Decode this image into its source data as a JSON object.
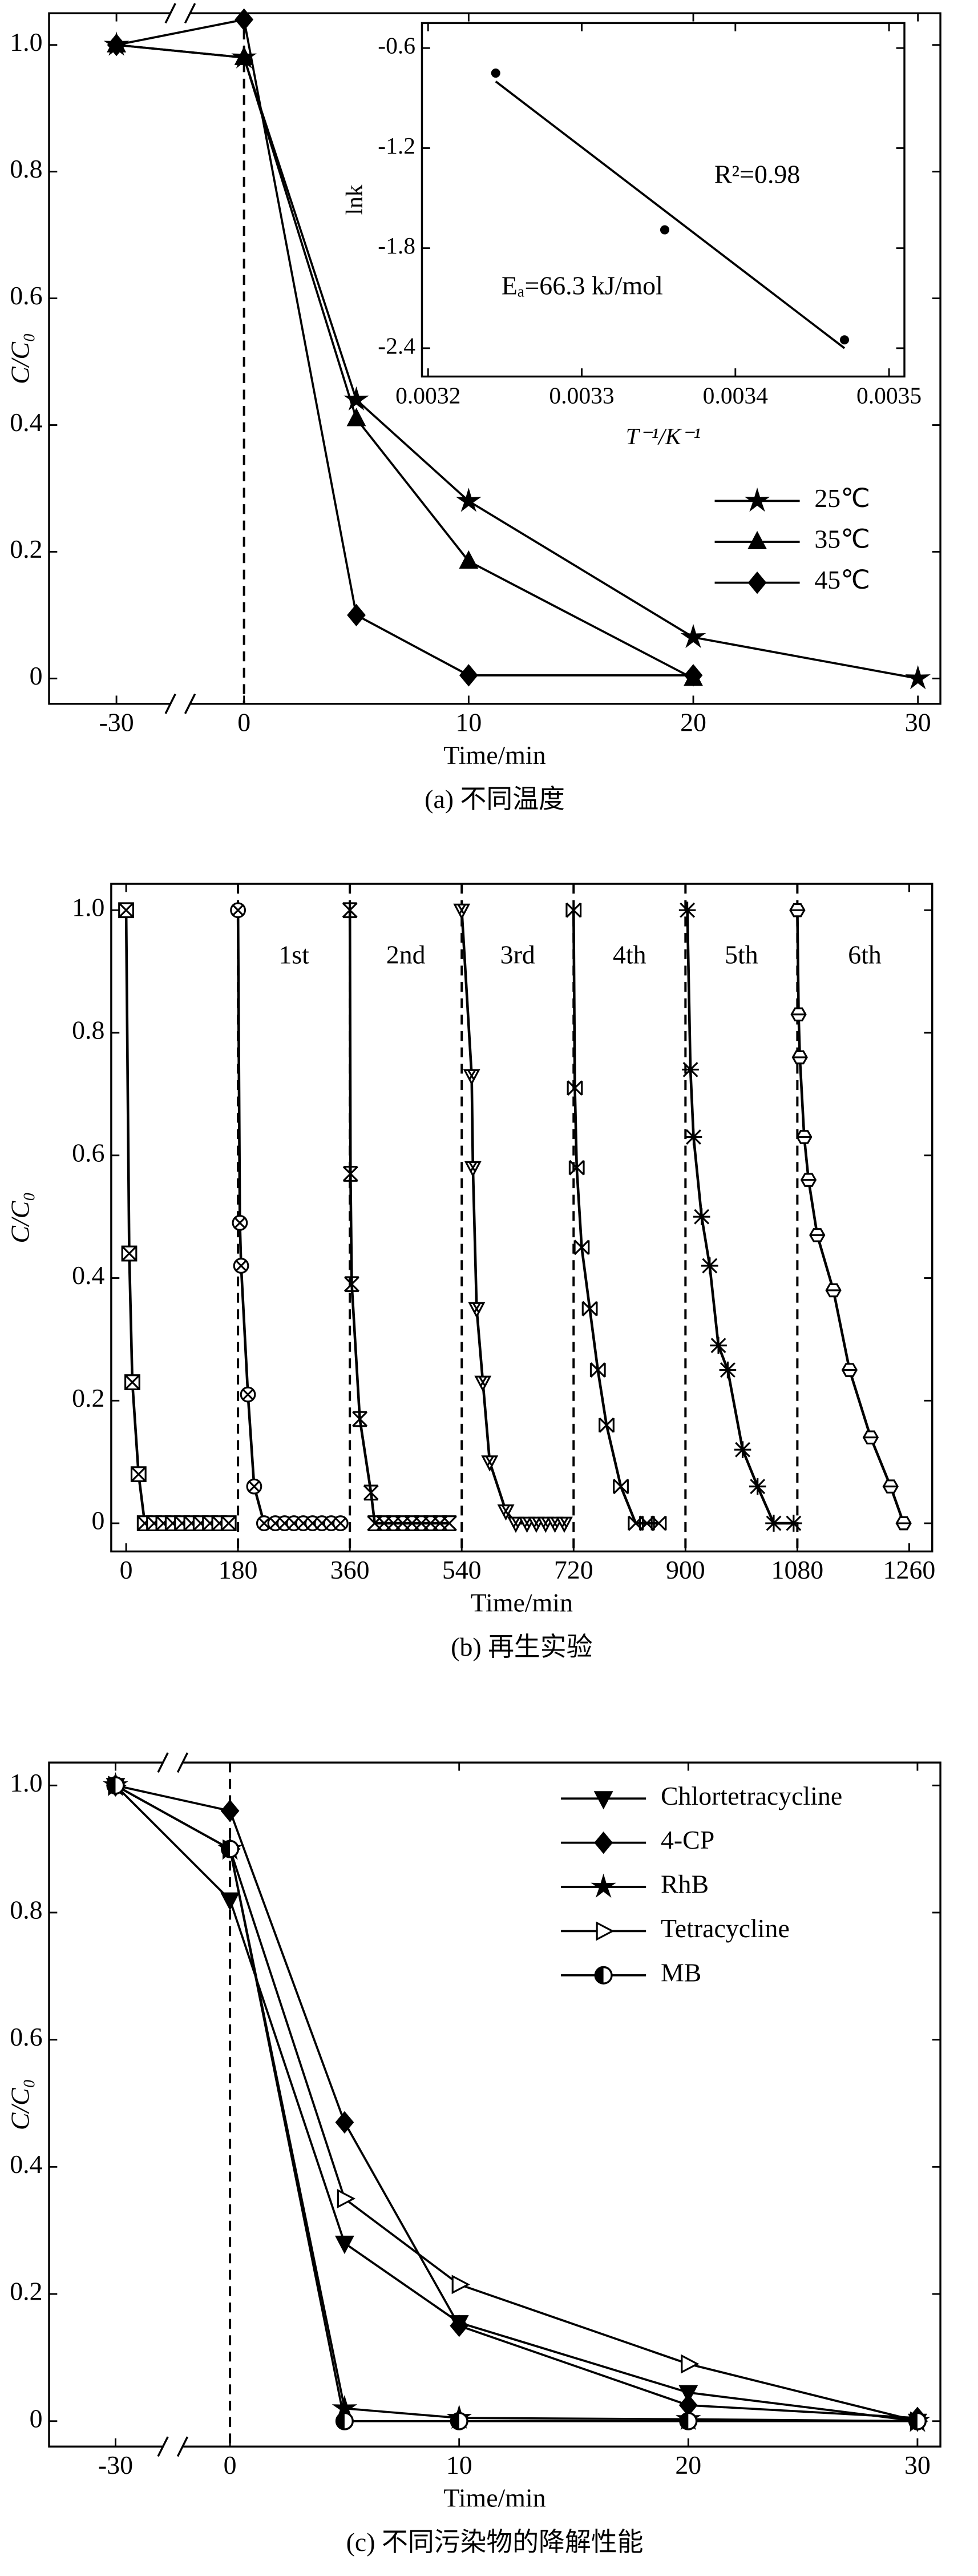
{
  "chart_data": [
    {
      "type": "line",
      "xlabel": "Time/min",
      "ylabel": "C/C₀",
      "caption": "(a) 不同温度",
      "x_break": [
        -30,
        0
      ],
      "xlim": [
        -33,
        31
      ],
      "ylim": [
        -0.04,
        1.05
      ],
      "xticks": [
        -30,
        0,
        10,
        20,
        30
      ],
      "yticks": [
        0,
        0.2,
        0.4,
        0.6,
        0.8,
        {
          "value": 1.0,
          "label": "1.0"
        }
      ],
      "vline": 0,
      "legend": "lower right",
      "series": [
        {
          "name": "25℃",
          "marker": "star",
          "color": "#000000",
          "x": [
            -30,
            0,
            5,
            10,
            20,
            30
          ],
          "values": [
            1.0,
            0.98,
            0.44,
            0.28,
            0.065,
            0.0
          ]
        },
        {
          "name": "35℃",
          "marker": "tri-up",
          "color": "#000000",
          "x": [
            -30,
            0,
            5,
            10,
            20
          ],
          "values": [
            1.0,
            0.98,
            0.41,
            0.185,
            0.0
          ]
        },
        {
          "name": "45℃",
          "marker": "diamond",
          "color": "#000000",
          "x": [
            -30,
            0,
            5,
            10,
            20
          ],
          "values": [
            1.0,
            1.04,
            0.1,
            0.005,
            0.005
          ]
        }
      ]
    },
    {
      "type": "scatter",
      "xlabel": "T⁻¹/K⁻¹",
      "ylabel": "lnk",
      "color": "#000000",
      "xlim": [
        0.003196,
        0.00351
      ],
      "ylim": [
        -2.57,
        -0.45
      ],
      "xticks": [
        0.0032,
        0.0033,
        0.0034,
        0.0035
      ],
      "yticks": [
        -0.6,
        -1.2,
        -1.8,
        -2.4
      ],
      "x": [
        0.003244,
        0.003354,
        0.003471
      ],
      "values": [
        -0.75,
        -1.69,
        -2.35
      ],
      "fit_line": {
        "x": [
          0.003244,
          0.003471
        ],
        "values": [
          -0.8,
          -2.4
        ]
      },
      "annotations": [
        "R²=0.98",
        "Eₐ=66.3 kJ/mol"
      ]
    },
    {
      "type": "line",
      "xlabel": "Time/min",
      "ylabel": "C/C₀",
      "caption": "(b) 再生实验",
      "xlim": [
        -24,
        1297
      ],
      "ylim": [
        -0.046,
        1.043
      ],
      "xticks": [
        0,
        180,
        360,
        540,
        720,
        900,
        1080,
        1260
      ],
      "yticks": [
        0,
        0.2,
        0.4,
        0.6,
        0.8,
        {
          "value": 1.0,
          "label": "1.0"
        }
      ],
      "vlines": [
        180,
        360,
        540,
        720,
        900,
        1080
      ],
      "cycle_labels": [
        "1st",
        "2nd",
        "3rd",
        "4th",
        "5th",
        "6th"
      ],
      "series": [
        {
          "marker": "boxed-x",
          "color": "#000000",
          "x": [
            0,
            5,
            10,
            20,
            30,
            45,
            60,
            75,
            90,
            105,
            120,
            135,
            150,
            165
          ],
          "values": [
            1.0,
            0.44,
            0.23,
            0.08,
            0,
            0,
            0,
            0,
            0,
            0,
            0,
            0,
            0,
            0
          ]
        },
        {
          "marker": "circle-x",
          "color": "#000000",
          "x": [
            180,
            183,
            185,
            196,
            206,
            222,
            240,
            255,
            270,
            285,
            300,
            315,
            330,
            345
          ],
          "values": [
            1.0,
            0.49,
            0.42,
            0.21,
            0.06,
            0,
            0,
            0,
            0,
            0,
            0,
            0,
            0,
            0
          ]
        },
        {
          "marker": "bowtie-x",
          "color": "#000000",
          "x": [
            360,
            361,
            363,
            376,
            394,
            400,
            415,
            430,
            445,
            460,
            475,
            490,
            505,
            520
          ],
          "values": [
            1.0,
            0.57,
            0.39,
            0.17,
            0.05,
            0,
            0,
            0,
            0,
            0,
            0,
            0,
            0,
            0
          ]
        },
        {
          "marker": "tri-down-x",
          "color": "#000000",
          "x": [
            540,
            556,
            558,
            564,
            574,
            585,
            611,
            627,
            645,
            660,
            675,
            690,
            705
          ],
          "values": [
            1.0,
            0.73,
            0.58,
            0.35,
            0.23,
            0.1,
            0.02,
            0,
            0,
            0,
            0,
            0,
            0
          ]
        },
        {
          "marker": "x-sides",
          "color": "#000000",
          "x": [
            720,
            722,
            725,
            733,
            746,
            759,
            773,
            796,
            820,
            838,
            857
          ],
          "values": [
            1.0,
            0.71,
            0.58,
            0.45,
            0.35,
            0.25,
            0.16,
            0.06,
            0,
            0,
            0
          ]
        },
        {
          "marker": "asterisk",
          "color": "#000000",
          "x": [
            903,
            908,
            913,
            926,
            939,
            953,
            968,
            992,
            1016,
            1042,
            1074
          ],
          "values": [
            1.0,
            0.74,
            0.63,
            0.5,
            0.42,
            0.29,
            0.25,
            0.12,
            0.06,
            0,
            0
          ]
        },
        {
          "marker": "hex-line",
          "color": "#000000",
          "x": [
            1080,
            1082,
            1084,
            1091,
            1098,
            1112,
            1138,
            1164,
            1198,
            1230,
            1251
          ],
          "values": [
            1.0,
            0.83,
            0.76,
            0.63,
            0.56,
            0.47,
            0.38,
            0.25,
            0.14,
            0.06,
            0
          ]
        }
      ]
    },
    {
      "type": "line",
      "xlabel": "Time/min",
      "ylabel": "C/C₀",
      "caption": "(c) 不同污染物的降解性能",
      "x_break": [
        -30,
        0
      ],
      "xlim": [
        -32.9,
        31
      ],
      "ylim": [
        -0.04,
        1.036
      ],
      "xticks": [
        -30,
        0,
        10,
        20,
        30
      ],
      "yticks": [
        0,
        0.2,
        0.4,
        0.6,
        0.8,
        {
          "value": 1.0,
          "label": "1.0"
        }
      ],
      "vline": 0,
      "legend": "upper right",
      "series": [
        {
          "name": "Chlortetracycline",
          "marker": "tri-down",
          "color": "#000000",
          "x": [
            -30,
            0,
            5,
            10,
            20,
            30
          ],
          "values": [
            1.0,
            0.82,
            0.28,
            0.155,
            0.045,
            0.0
          ]
        },
        {
          "name": "4-CP",
          "marker": "diamond",
          "color": "#000000",
          "x": [
            -30,
            0,
            5,
            10,
            20,
            30
          ],
          "values": [
            1.0,
            0.96,
            0.47,
            0.15,
            0.025,
            0.005
          ]
        },
        {
          "name": "RhB",
          "marker": "star",
          "color": "#000000",
          "x": [
            -30,
            0,
            5,
            10,
            20,
            30
          ],
          "values": [
            1.0,
            0.9,
            0.02,
            0.005,
            0.003,
            0.0
          ]
        },
        {
          "name": "Tetracycline",
          "marker": "tri-right",
          "color": "#000000",
          "x": [
            -30,
            0,
            5,
            10,
            20,
            30
          ],
          "values": [
            1.0,
            0.9,
            0.35,
            0.215,
            0.09,
            0.0
          ]
        },
        {
          "name": "MB",
          "marker": "half-circle",
          "color": "#000000",
          "x": [
            -30,
            0,
            5,
            10,
            20,
            30
          ],
          "values": [
            1.0,
            0.9,
            0.0,
            0.0,
            0.0,
            0.0
          ]
        }
      ]
    }
  ]
}
